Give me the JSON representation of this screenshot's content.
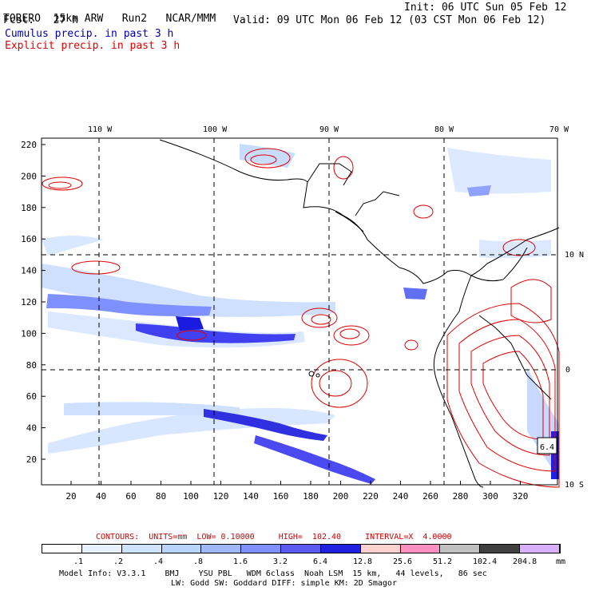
{
  "header": {
    "model": "TORERO",
    "resolution": "15km ARW",
    "run": "Run2",
    "org": "NCAR/MMM",
    "init_label": "Init: 06 UTC Sun 05 Feb 12",
    "fcst_label": "Fcst:",
    "fcst_value": "27 h",
    "valid_label": "Valid: 09 UTC Mon 06 Feb 12 (03 CST Mon 06 Feb 12)"
  },
  "fields": {
    "cumulus": "Cumulus precip. in past 3 h",
    "explicit": "Explicit precip. in past 3 h",
    "cumulus_color": "#0000b0",
    "explicit_color": "#e00000"
  },
  "map": {
    "lon_labels": [
      "110 W",
      "100 W",
      "90 W",
      "80 W",
      "70 W"
    ],
    "lat_labels": [
      "10 N",
      "0",
      "10 S"
    ],
    "y_ticks": [
      "220",
      "200",
      "180",
      "160",
      "140",
      "120",
      "100",
      "80",
      "60",
      "40",
      "20"
    ],
    "x_ticks": [
      "20",
      "40",
      "60",
      "80",
      "100",
      "120",
      "140",
      "160",
      "180",
      "200",
      "220",
      "240",
      "260",
      "280",
      "300",
      "320"
    ],
    "box_label": "6.4"
  },
  "contours": {
    "text": "CONTOURS:  UNITS=mm  LOW= 0.10000     HIGH=  102.40     INTERVAL=X  4.0000"
  },
  "legend": {
    "labels": [
      ".1",
      ".2",
      ".4",
      ".8",
      "1.6",
      "3.2",
      "6.4",
      "12.8",
      "25.6",
      "51.2",
      "102.4",
      "204.8"
    ],
    "unit": "mm",
    "colors": [
      "#ffffff",
      "#e8f2ff",
      "#cfe4ff",
      "#b8d4ff",
      "#a0b8ff",
      "#8090ff",
      "#5a5af0",
      "#2020e0",
      "#ffd0d0",
      "#ff90c0",
      "#c0c0c0",
      "#404040",
      "#d8b0ff"
    ]
  },
  "footer": {
    "line1": "Model Info: V3.3.1    BMJ    YSU PBL   WDM 6class  Noah LSM  15 km,   44 levels,   86 sec",
    "line2": "LW: Godd SW: Goddard DIFF: simple KM: 2D Smagor"
  }
}
